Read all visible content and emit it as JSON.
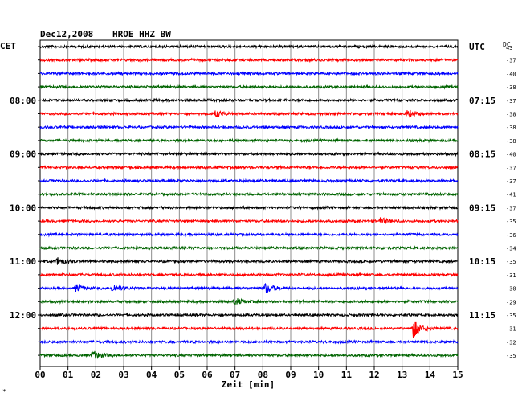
{
  "chart_data": {
    "type": "line",
    "title": "Dec12,2008",
    "station": "HROE HHZ BW",
    "xlabel": "Zeit [min]",
    "left_header": "CET",
    "right_header": "UTC",
    "dc_header": "DC",
    "xlim": [
      0,
      15
    ],
    "x_ticks": [
      "00",
      "01",
      "02",
      "03",
      "04",
      "05",
      "06",
      "07",
      "08",
      "09",
      "10",
      "11",
      "12",
      "13",
      "14",
      "15"
    ],
    "grid": true,
    "series_colors": [
      "#000000",
      "#ff0000",
      "#0000ff",
      "#006400"
    ],
    "left_time_labels": [
      {
        "row": 4,
        "label": "08:00"
      },
      {
        "row": 8,
        "label": "09:00"
      },
      {
        "row": 12,
        "label": "10:00"
      },
      {
        "row": 16,
        "label": "11:00"
      },
      {
        "row": 20,
        "label": "12:00"
      }
    ],
    "right_time_labels": [
      {
        "row": 0,
        "label": "UTC"
      },
      {
        "row": 4,
        "label": "07:15"
      },
      {
        "row": 8,
        "label": "08:15"
      },
      {
        "row": 12,
        "label": "09:15"
      },
      {
        "row": 16,
        "label": "10:15"
      },
      {
        "row": 20,
        "label": "11:15"
      }
    ],
    "dc_offsets": [
      "43",
      "-37",
      "-40",
      "-38",
      "-37",
      "-38",
      "-38",
      "-38",
      "-40",
      "-37",
      "-37",
      "-41",
      "-37",
      "-35",
      "-36",
      "-34",
      "-35",
      "-31",
      "-30",
      "-29",
      "-35",
      "-31",
      "-32",
      "-35"
    ],
    "events": [
      {
        "row": 5,
        "x": 6.3,
        "amp": 4
      },
      {
        "row": 5,
        "x": 13.2,
        "amp": 5
      },
      {
        "row": 13,
        "x": 12.2,
        "amp": 4
      },
      {
        "row": 16,
        "x": 0.6,
        "amp": 5
      },
      {
        "row": 18,
        "x": 1.3,
        "amp": 4
      },
      {
        "row": 18,
        "x": 2.6,
        "amp": 5
      },
      {
        "row": 18,
        "x": 8.1,
        "amp": 6
      },
      {
        "row": 19,
        "x": 7.0,
        "amp": 4
      },
      {
        "row": 21,
        "x": 13.4,
        "amp": 11
      },
      {
        "row": 23,
        "x": 1.9,
        "amp": 5
      }
    ],
    "footer_mark": "*"
  }
}
